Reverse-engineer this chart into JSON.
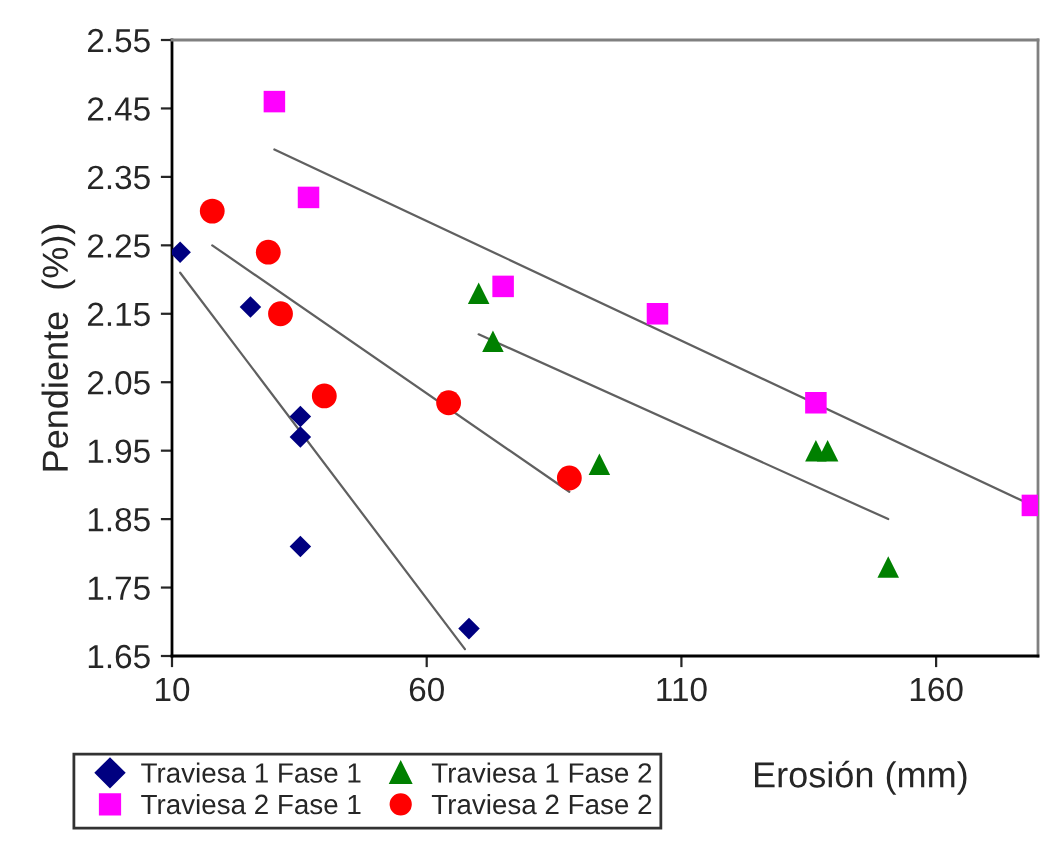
{
  "chart_data": {
    "type": "scatter",
    "xlabel": "Erosión (mm)",
    "ylabel": "Pendiente  (%))",
    "xlim": [
      10,
      180
    ],
    "xticks": [
      10,
      60,
      110,
      160
    ],
    "ylim": [
      1.65,
      2.55
    ],
    "yticks": [
      1.65,
      1.75,
      1.85,
      1.95,
      2.05,
      2.15,
      2.25,
      2.35,
      2.45,
      2.55
    ],
    "grid": false,
    "legend": "bottom",
    "series": [
      {
        "name": "Traviesa 1 Fase 1",
        "color": "#000080",
        "marker": "diamond",
        "x": [
          11.6,
          25.4,
          35.2,
          35.2,
          35.2,
          68.3
        ],
        "values": [
          2.24,
          2.16,
          2.0,
          1.97,
          1.81,
          1.69
        ]
      },
      {
        "name": "Traviesa 2 Fase 1",
        "color": "#ff00ff",
        "marker": "square",
        "x": [
          30.1,
          36.8,
          75,
          105.3,
          136.4,
          178.9
        ],
        "values": [
          2.46,
          2.32,
          2.19,
          2.15,
          2.02,
          1.87
        ]
      },
      {
        "name": "Traviesa 1 Fase 2",
        "color": "#008000",
        "marker": "triangle",
        "x": [
          70.2,
          73,
          93.9,
          136.4,
          138.7,
          150.6
        ],
        "values": [
          2.18,
          2.11,
          1.93,
          1.95,
          1.95,
          1.78
        ]
      },
      {
        "name": "Traviesa 2 Fase 2",
        "color": "#ff0000",
        "marker": "circle",
        "x": [
          17.9,
          28.9,
          31.3,
          39.9,
          64.3,
          88
        ],
        "values": [
          2.3,
          2.24,
          2.15,
          2.03,
          2.02,
          1.91
        ]
      },
      {
        "type": "line",
        "color": "#606060",
        "x": [
          11.6,
          67.5
        ],
        "values": [
          2.21,
          1.66
        ]
      },
      {
        "type": "line",
        "color": "#606060",
        "x": [
          30.1,
          178.9
        ],
        "values": [
          2.39,
          1.87
        ]
      },
      {
        "type": "line",
        "color": "#606060",
        "x": [
          70.2,
          150.6
        ],
        "values": [
          2.12,
          1.85
        ]
      },
      {
        "type": "line",
        "color": "#606060",
        "x": [
          17.9,
          88
        ],
        "values": [
          2.25,
          1.89
        ]
      }
    ]
  }
}
